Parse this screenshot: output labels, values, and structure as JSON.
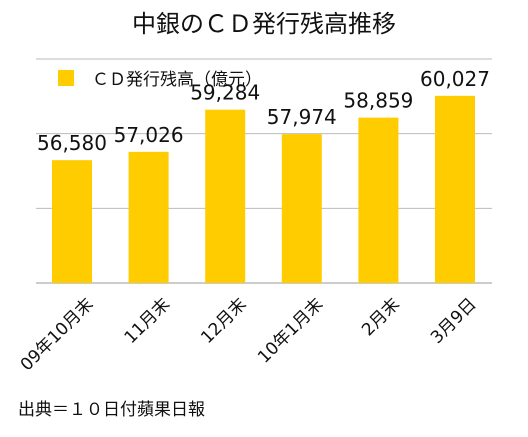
{
  "chart_data": {
    "type": "bar",
    "title": "中銀のＣＤ発行残高推移",
    "categories": [
      "09年10月末",
      "11月末",
      "12月末",
      "10年1月末",
      "2月末",
      "3月9日"
    ],
    "series": [
      {
        "name": "ＣＤ発行残高（億元）",
        "values": [
          56580,
          57026,
          59284,
          57974,
          58859,
          60027
        ]
      }
    ],
    "data_labels": [
      "56,580",
      "57,026",
      "59,284",
      "57,974",
      "58,859",
      "60,027"
    ],
    "ylim": [
      50000,
      62000
    ],
    "grid": true,
    "legend_position": "top-left",
    "bar_color": "#FFCC00",
    "gridline_color": "#BBBBBB"
  },
  "source": "出典＝１０日付蘋果日報"
}
